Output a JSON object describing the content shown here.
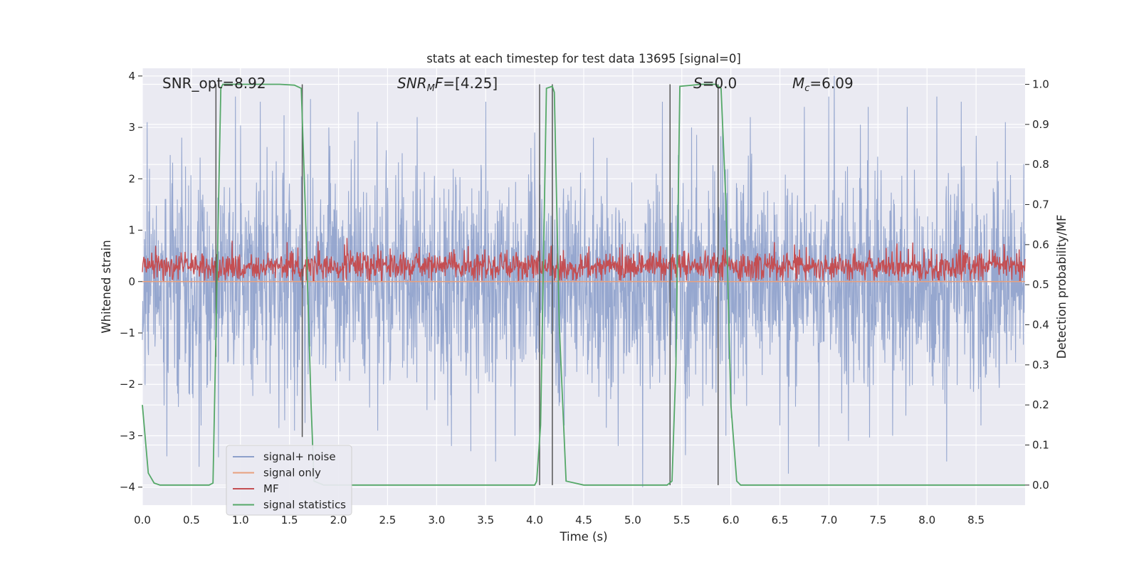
{
  "chart_data": {
    "type": "line",
    "title": "stats at each timestep for test data 13695 [signal=0]",
    "xlabel": "Time (s)",
    "ylabel": "Whitened strain",
    "ylabel_right": "Detection probability/MF",
    "xlim": [
      0,
      9.0
    ],
    "ylim": [
      -4.35,
      4.15
    ],
    "ylim_right": [
      -0.05,
      1.04
    ],
    "x_ticks": [
      0.0,
      0.5,
      1.0,
      1.5,
      2.0,
      2.5,
      3.0,
      3.5,
      4.0,
      4.5,
      5.0,
      5.5,
      6.0,
      6.5,
      7.0,
      7.5,
      8.0,
      8.5
    ],
    "x_tick_labels": [
      "0.0",
      "0.5",
      "1.0",
      "1.5",
      "2.0",
      "2.5",
      "3.0",
      "3.5",
      "4.0",
      "4.5",
      "5.0",
      "5.5",
      "6.0",
      "6.5",
      "7.0",
      "7.5",
      "8.0",
      "8.5"
    ],
    "y_ticks": [
      4,
      3,
      2,
      1,
      0,
      -1,
      -2,
      -3,
      -4
    ],
    "y_tick_labels": [
      "4",
      "3",
      "2",
      "1",
      "0",
      "−1",
      "−2",
      "−3",
      "−4"
    ],
    "y_ticks_right": [
      1.0,
      0.9,
      0.8,
      0.7,
      0.6,
      0.5,
      0.4,
      0.3,
      0.2,
      0.1,
      0.0
    ],
    "y_tick_labels_right": [
      "1.0",
      "0.9",
      "0.8",
      "0.7",
      "0.6",
      "0.5",
      "0.4",
      "0.3",
      "0.2",
      "0.1",
      "0.0"
    ],
    "annotations": [
      {
        "text": "SNR_opt=8.92",
        "x": 0.2
      },
      {
        "text": "SNR_MF=[4.25]",
        "x": 2.6
      },
      {
        "text": "S=0.0",
        "x": 5.6
      },
      {
        "text": "M_c=6.09",
        "x": 6.6
      }
    ],
    "legend_position": "lower-left",
    "grid": true,
    "series": [
      {
        "name": "signal+ noise",
        "color": "#8da0cb",
        "axis": "left",
        "description_envelope": "dense whitened noise ~ N(0,1), peaks roughly ±3.5",
        "x_range": [
          0,
          9.0
        ],
        "std": 1.0
      },
      {
        "name": "signal only",
        "color": "#e8a07e",
        "axis": "left",
        "x": [
          0,
          9.0
        ],
        "values": [
          0,
          0
        ]
      },
      {
        "name": "MF",
        "color": "#c44e52",
        "axis": "left",
        "description_envelope": "matched-filter output fluctuating around 0.3 between 0 and 1",
        "x_range": [
          0,
          9.0
        ],
        "mean": 0.3,
        "std": 0.15
      },
      {
        "name": "signal statistics",
        "color": "#55a868",
        "axis": "right",
        "x": [
          0.0,
          0.06,
          0.12,
          0.18,
          0.3,
          0.5,
          0.68,
          0.72,
          0.76,
          0.8,
          0.82,
          1.0,
          1.2,
          1.4,
          1.55,
          1.62,
          1.66,
          1.72,
          1.75,
          1.85,
          2.0,
          3.0,
          4.0,
          4.02,
          4.06,
          4.12,
          4.18,
          4.2,
          4.25,
          4.32,
          4.5,
          5.0,
          5.35,
          5.4,
          5.44,
          5.48,
          5.7,
          5.85,
          5.9,
          5.95,
          6.0,
          6.06,
          6.1,
          7.0,
          8.0,
          9.0
        ],
        "values": [
          0.2,
          0.03,
          0.005,
          0.0,
          0.0,
          0.0,
          0.0,
          0.005,
          0.5,
          0.99,
          1.0,
          1.0,
          1.0,
          1.0,
          0.998,
          0.99,
          0.7,
          0.2,
          0.01,
          0.0,
          0.0,
          0.0,
          0.0,
          0.01,
          0.15,
          0.99,
          0.995,
          0.98,
          0.4,
          0.01,
          0.0,
          0.0,
          0.0,
          0.01,
          0.3,
          0.995,
          1.0,
          1.0,
          0.99,
          0.7,
          0.2,
          0.01,
          0.0,
          0.0,
          0.0,
          0.0
        ]
      }
    ],
    "vertical_markers": {
      "color": "#555555",
      "x": [
        0.75,
        1.63,
        4.05,
        4.18,
        5.38,
        5.87
      ],
      "y_top_right": 1.0,
      "y_bottom_right": [
        0.32,
        0.12,
        0.0,
        0.0,
        0.0,
        0.0
      ]
    },
    "noise_peaks": [
      {
        "x": 0.05,
        "y": 3.1
      },
      {
        "x": 0.25,
        "y": -3.4
      },
      {
        "x": 0.4,
        "y": 2.8
      },
      {
        "x": 0.6,
        "y": -2.8
      },
      {
        "x": 0.95,
        "y": 3.6
      },
      {
        "x": 1.2,
        "y": 3.5
      },
      {
        "x": 1.45,
        "y": -2.7
      },
      {
        "x": 1.55,
        "y": -2.9
      },
      {
        "x": 1.9,
        "y": 3.0
      },
      {
        "x": 2.2,
        "y": 3.3
      },
      {
        "x": 2.4,
        "y": -2.9
      },
      {
        "x": 2.8,
        "y": 3.2
      },
      {
        "x": 3.15,
        "y": -3.2
      },
      {
        "x": 3.35,
        "y": -3.3
      },
      {
        "x": 3.5,
        "y": 3.5
      },
      {
        "x": 3.6,
        "y": -3.5
      },
      {
        "x": 3.8,
        "y": -3.0
      },
      {
        "x": 4.0,
        "y": 2.9
      },
      {
        "x": 4.3,
        "y": -2.8
      },
      {
        "x": 4.6,
        "y": 2.8
      },
      {
        "x": 4.85,
        "y": -3.2
      },
      {
        "x": 5.1,
        "y": -4.0
      },
      {
        "x": 5.3,
        "y": 3.5
      },
      {
        "x": 5.6,
        "y": 3.0
      },
      {
        "x": 5.95,
        "y": -3.0
      },
      {
        "x": 6.2,
        "y": 3.2
      },
      {
        "x": 6.5,
        "y": -2.8
      },
      {
        "x": 6.75,
        "y": 3.4
      },
      {
        "x": 7.0,
        "y": 3.6
      },
      {
        "x": 7.2,
        "y": -3.1
      },
      {
        "x": 7.4,
        "y": 3.4
      },
      {
        "x": 7.65,
        "y": -3.0
      },
      {
        "x": 7.8,
        "y": 3.4
      },
      {
        "x": 8.1,
        "y": 3.6
      },
      {
        "x": 8.2,
        "y": -3.5
      },
      {
        "x": 8.35,
        "y": 3.5
      },
      {
        "x": 8.55,
        "y": -2.8
      },
      {
        "x": 8.8,
        "y": 3.1
      }
    ]
  }
}
